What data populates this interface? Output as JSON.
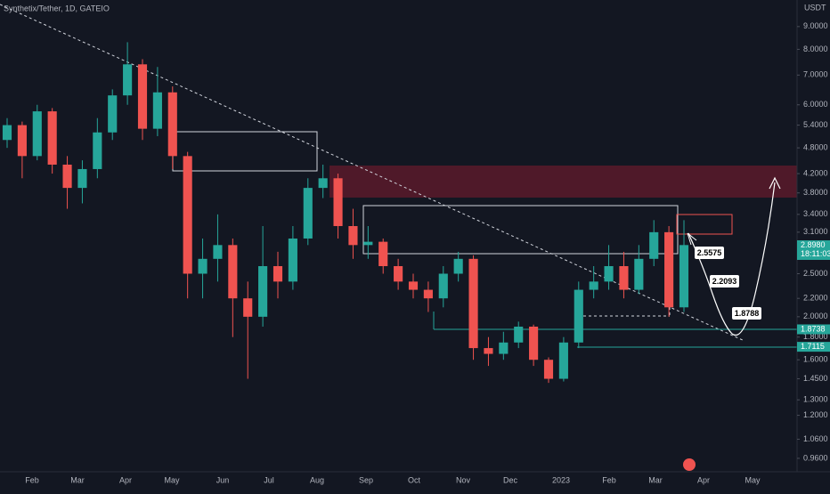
{
  "chart_data": {
    "type": "candlestick",
    "title": "Synthetix/Tether, 1D, GATEIO",
    "y_axis_unit": "USDT",
    "log_scale": true,
    "up_color": "#26a69a",
    "down_color": "#ef5350",
    "ylim": [
      0.908,
      10.33
    ],
    "yticks": [
      {
        "value": 9,
        "label": "9.0000"
      },
      {
        "value": 8,
        "label": "8.0000"
      },
      {
        "value": 7,
        "label": "7.0000"
      },
      {
        "value": 6,
        "label": "6.0000"
      },
      {
        "value": 5.4,
        "label": "5.4000"
      },
      {
        "value": 4.8,
        "label": "4.8000"
      },
      {
        "value": 4.2,
        "label": "4.2000"
      },
      {
        "value": 3.8,
        "label": "3.8000"
      },
      {
        "value": 3.4,
        "label": "3.4000"
      },
      {
        "value": 3.1,
        "label": "3.1000"
      },
      {
        "value": 2.5,
        "label": "2.5000"
      },
      {
        "value": 2.2,
        "label": "2.2000"
      },
      {
        "value": 2,
        "label": "2.0000"
      },
      {
        "value": 1.8,
        "label": "1.8000"
      },
      {
        "value": 1.6,
        "label": "1.6000"
      },
      {
        "value": 1.45,
        "label": "1.4500"
      },
      {
        "value": 1.3,
        "label": "1.3000"
      },
      {
        "value": 1.2,
        "label": "1.2000"
      },
      {
        "value": 1.06,
        "label": "1.0600"
      },
      {
        "value": 0.96,
        "label": "0.9600"
      }
    ],
    "xtick_labels": [
      "Feb",
      "Mar",
      "Apr",
      "May",
      "Jun",
      "Jul",
      "Aug",
      "Sep",
      "Oct",
      "Nov",
      "Dec",
      "2023",
      "Feb",
      "Mar",
      "Apr",
      "May"
    ],
    "candles": {
      "open": [
        5.0,
        5.4,
        4.6,
        5.8,
        4.4,
        3.9,
        4.3,
        5.2,
        6.3,
        7.4,
        5.3,
        6.4,
        4.6,
        2.5,
        2.7,
        2.9,
        2.2,
        2.0,
        2.6,
        2.4,
        3.0,
        3.9,
        4.1,
        3.2,
        2.9,
        2.95,
        2.6,
        2.4,
        2.3,
        2.2,
        2.5,
        2.7,
        1.7,
        1.65,
        1.75,
        1.9,
        1.6,
        1.45,
        1.75,
        2.3,
        2.4,
        2.6,
        2.3,
        2.7,
        3.1,
        2.1
      ],
      "high": [
        5.6,
        5.5,
        6.0,
        5.9,
        4.6,
        4.5,
        5.6,
        6.5,
        8.3,
        7.6,
        7.3,
        6.6,
        4.7,
        3.0,
        3.4,
        3.0,
        2.4,
        3.2,
        2.8,
        3.2,
        4.1,
        4.4,
        4.2,
        3.5,
        3.2,
        3.0,
        2.7,
        2.5,
        2.4,
        2.6,
        2.8,
        2.75,
        1.8,
        1.85,
        1.95,
        1.92,
        1.62,
        1.8,
        2.4,
        2.6,
        2.9,
        2.8,
        2.9,
        3.3,
        3.2,
        3.3
      ],
      "low": [
        4.8,
        4.1,
        4.5,
        4.2,
        3.5,
        3.6,
        4.1,
        5.0,
        6.0,
        5.0,
        5.1,
        4.3,
        2.2,
        2.2,
        2.4,
        1.8,
        1.45,
        1.9,
        2.2,
        2.3,
        2.9,
        3.7,
        3.0,
        2.7,
        2.7,
        2.5,
        2.3,
        2.2,
        2.05,
        2.1,
        2.4,
        1.6,
        1.55,
        1.6,
        1.7,
        1.55,
        1.42,
        1.43,
        1.7,
        2.2,
        2.3,
        2.2,
        2.25,
        2.6,
        2.0,
        2.05
      ],
      "close": [
        5.4,
        4.6,
        5.8,
        4.4,
        3.9,
        4.3,
        5.2,
        6.3,
        7.4,
        5.3,
        6.4,
        4.6,
        2.5,
        2.7,
        2.9,
        2.2,
        2.0,
        2.6,
        2.4,
        3.0,
        3.9,
        4.1,
        3.2,
        2.9,
        2.95,
        2.6,
        2.4,
        2.3,
        2.2,
        2.5,
        2.7,
        1.7,
        1.65,
        1.75,
        1.9,
        1.6,
        1.45,
        1.75,
        2.3,
        2.4,
        2.6,
        2.3,
        2.7,
        3.1,
        2.1,
        2.9
      ]
    },
    "price_labels": [
      {
        "value": 2.898,
        "label": "2.8980",
        "color": "#26a69a"
      },
      {
        "value": 1.8738,
        "label": "1.8738",
        "color": "#26a69a"
      },
      {
        "value": 1.7115,
        "label": "1.7115",
        "color": "#26a69a"
      }
    ],
    "countdown": "18:11:03",
    "annotations": [
      "2.5575",
      "2.2093",
      "1.8788"
    ]
  }
}
